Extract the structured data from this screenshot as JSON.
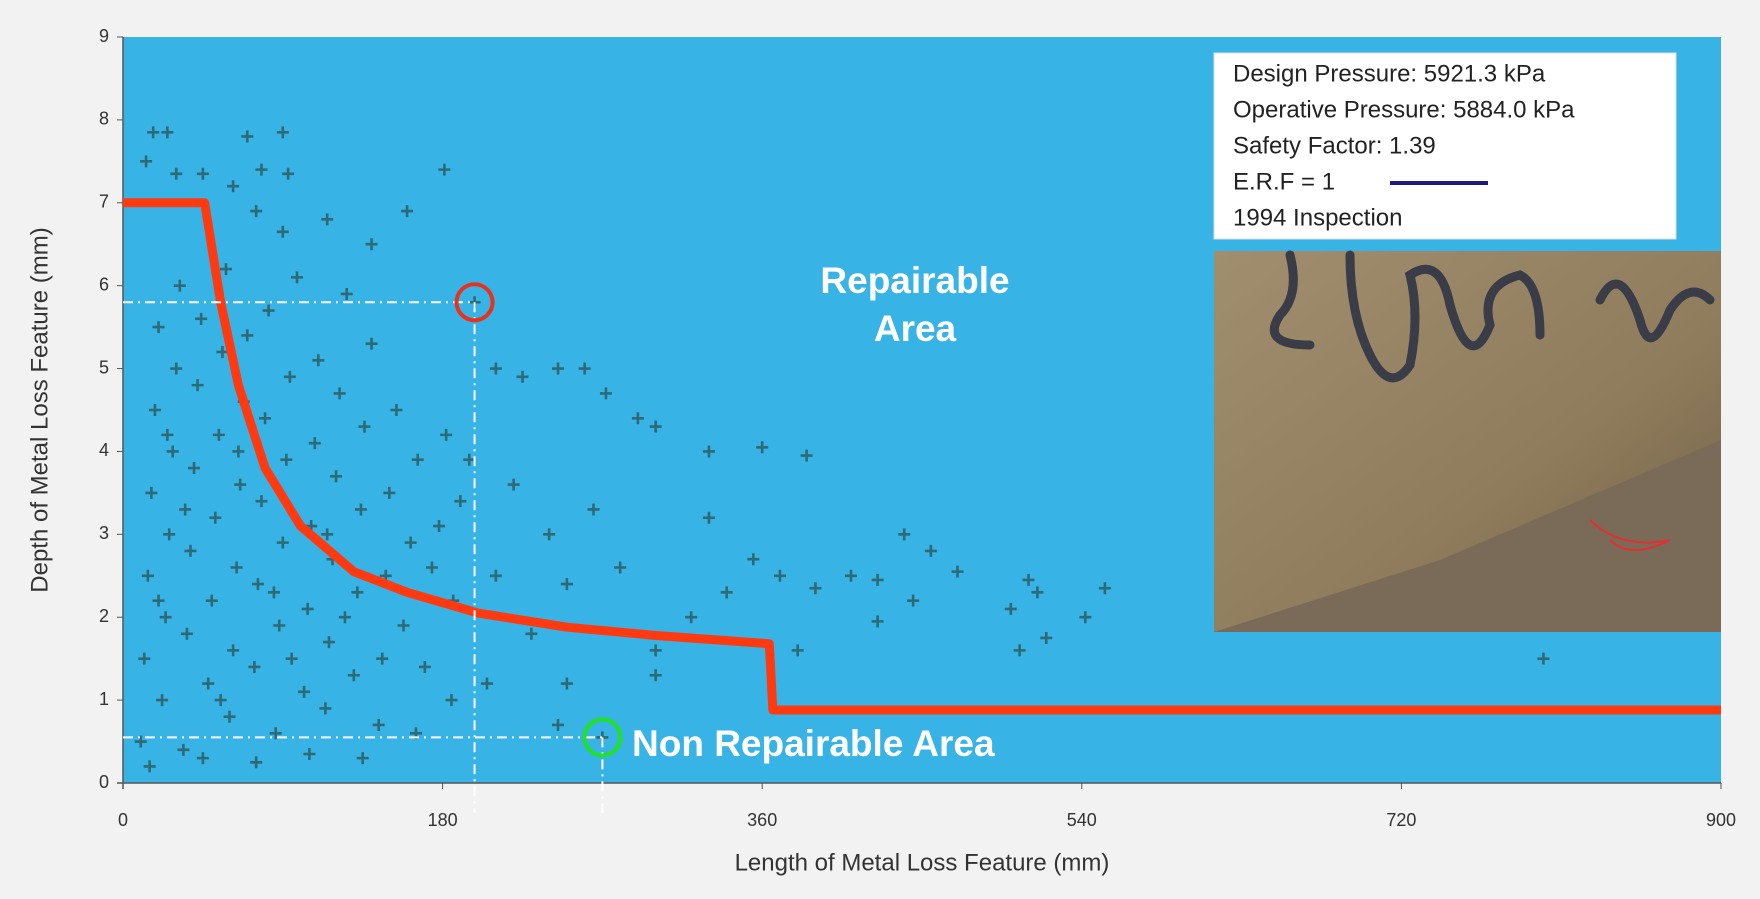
{
  "chart_data": {
    "type": "scatter",
    "x_label": "Length of Metal Loss Feature (mm)",
    "y_label": "Depth of Metal Loss Feature (mm)",
    "xlim": [
      0,
      900
    ],
    "xticks": [
      0,
      180,
      360,
      540,
      720,
      900
    ],
    "ylim": [
      0,
      9
    ],
    "yticks": [
      0,
      1,
      2,
      3,
      4,
      5,
      6,
      7,
      8,
      9
    ],
    "grid": false,
    "plot_color": "#38b3e6",
    "info_lines": [
      "Design Pressure: 5921.3 kPa",
      "Operative Pressure: 5884.0 kPa",
      "Safety Factor: 1.39"
    ],
    "annotations": [
      "Repairable Area",
      "Non Repairable Area"
    ],
    "series": [
      {
        "name": "E.R.F = 1",
        "type": "line",
        "color": "#ff3a10",
        "legend_color": "#1a1a80",
        "x": [
          0,
          46,
          55,
          65,
          80,
          100,
          130,
          160,
          200,
          250,
          300,
          364,
          366,
          900
        ],
        "values": [
          7,
          7,
          5.8,
          4.8,
          3.8,
          3.1,
          2.55,
          2.3,
          2.05,
          1.88,
          1.78,
          1.68,
          0.88,
          0.88
        ]
      },
      {
        "name": "1994 Inspection",
        "type": "scatter",
        "color": "#2d6a76",
        "x": [
          13,
          17,
          25,
          30,
          45,
          70,
          62,
          78,
          90,
          93,
          90,
          75,
          115,
          140,
          160,
          181,
          198,
          210,
          225,
          245,
          260,
          272,
          290,
          300,
          330,
          360,
          385,
          440,
          455,
          470,
          445,
          425,
          425,
          410,
          390,
          380,
          370,
          355,
          340,
          320,
          300,
          280,
          265,
          250,
          240,
          230,
          220,
          210,
          205,
          195,
          185,
          250,
          245,
          270,
          300,
          330,
          500,
          510,
          515,
          505,
          520,
          553,
          542,
          800,
          10,
          12,
          14,
          16,
          18,
          20,
          22,
          24,
          26,
          28,
          30,
          32,
          34,
          36,
          38,
          40,
          42,
          44,
          48,
          50,
          52,
          54,
          56,
          58,
          60,
          62,
          64,
          66,
          68,
          70,
          74,
          76,
          78,
          80,
          82,
          86,
          88,
          90,
          92,
          94,
          98,
          102,
          104,
          106,
          108,
          110,
          114,
          116,
          118,
          120,
          122,
          126,
          130,
          132,
          134,
          136,
          140,
          144,
          146,
          148,
          150,
          154,
          158,
          162,
          166,
          170,
          174,
          178,
          182,
          186,
          190,
          15,
          45,
          75,
          105,
          135,
          165,
          20,
          35,
          55,
          85,
          115,
          125,
          95,
          65,
          25
        ],
        "values": [
          7.5,
          7.85,
          7.85,
          7.35,
          7.35,
          7.8,
          7.2,
          7.4,
          7.85,
          7.35,
          6.65,
          6.9,
          6.8,
          6.5,
          6.9,
          7.4,
          5.8,
          5.0,
          4.9,
          5.0,
          5.0,
          4.7,
          4.4,
          4.3,
          4.0,
          4.05,
          3.95,
          3.0,
          2.8,
          2.55,
          2.2,
          1.95,
          2.45,
          2.5,
          2.35,
          1.6,
          2.5,
          2.7,
          2.3,
          2.0,
          1.6,
          2.6,
          3.3,
          2.4,
          3.0,
          1.8,
          3.6,
          2.5,
          1.2,
          3.9,
          1.0,
          1.2,
          0.7,
          0.55,
          1.3,
          3.2,
          2.1,
          2.45,
          2.3,
          1.6,
          1.75,
          2.35,
          2.0,
          1.5,
          0.5,
          1.5,
          2.5,
          3.5,
          4.5,
          5.5,
          1.0,
          2.0,
          3.0,
          4.0,
          5.0,
          6.0,
          0.4,
          1.8,
          2.8,
          3.8,
          4.8,
          5.6,
          1.2,
          2.2,
          3.2,
          4.2,
          5.2,
          6.2,
          0.8,
          1.6,
          2.6,
          3.6,
          4.6,
          5.4,
          1.4,
          2.4,
          3.4,
          4.4,
          5.7,
          0.6,
          1.9,
          2.9,
          3.9,
          4.9,
          6.1,
          1.1,
          2.1,
          3.1,
          4.1,
          5.1,
          0.9,
          1.7,
          2.7,
          3.7,
          4.7,
          5.9,
          1.3,
          2.3,
          3.3,
          4.3,
          5.3,
          0.7,
          1.5,
          2.5,
          3.5,
          4.5,
          1.9,
          2.9,
          3.9,
          1.4,
          2.6,
          3.1,
          4.2,
          2.2,
          3.4,
          0.2,
          0.3,
          0.25,
          0.35,
          0.3,
          0.6,
          2.2,
          3.3,
          1.0,
          2.3,
          3.0,
          2.0,
          1.5,
          4.0,
          4.2
        ]
      }
    ],
    "highlights": [
      {
        "x": 198,
        "y": 5.8,
        "color": "#e8321e"
      },
      {
        "x": 270,
        "y": 0.55,
        "color": "#22e022"
      }
    ]
  }
}
